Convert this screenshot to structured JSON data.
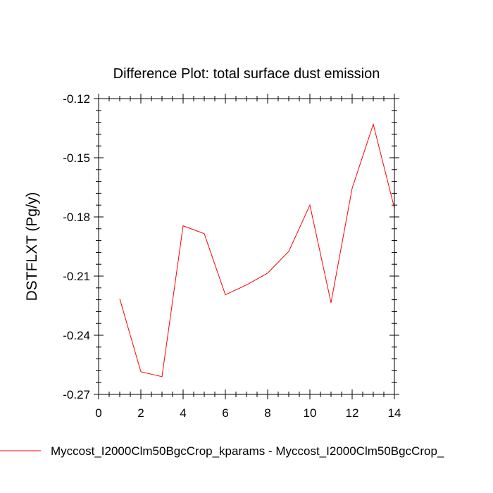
{
  "chart_data": {
    "type": "line",
    "title": "Difference Plot: total surface dust emission",
    "xlabel": "",
    "ylabel": "DSTFLXT  (Pg/y)",
    "xlim": [
      0,
      14
    ],
    "ylim": [
      -0.27,
      -0.12
    ],
    "xticks": [
      0,
      2,
      4,
      6,
      8,
      10,
      12,
      14
    ],
    "xtick_labels": [
      "0",
      "2",
      "4",
      "6",
      "8",
      "10",
      "12",
      "14"
    ],
    "yticks": [
      -0.12,
      -0.15,
      -0.18,
      -0.21,
      -0.24,
      -0.27
    ],
    "ytick_labels": [
      "-0.12",
      "-0.15",
      "-0.18",
      "-0.21",
      "-0.24",
      "-0.27"
    ],
    "grid": false,
    "legend_position": "bottom",
    "series": [
      {
        "name": "Myccost_I2000Clm50BgcCrop_kparams - Myccost_I2000Clm50BgcCrop_",
        "color": "#ff0000",
        "x": [
          1,
          2,
          3,
          4,
          5,
          6,
          7,
          8,
          9,
          10,
          11,
          12,
          13,
          14
        ],
        "y": [
          -0.2215,
          -0.2585,
          -0.261,
          -0.1845,
          -0.1885,
          -0.2195,
          -0.2145,
          -0.2085,
          -0.1975,
          -0.174,
          -0.2235,
          -0.1655,
          -0.133,
          -0.1755
        ]
      }
    ]
  }
}
